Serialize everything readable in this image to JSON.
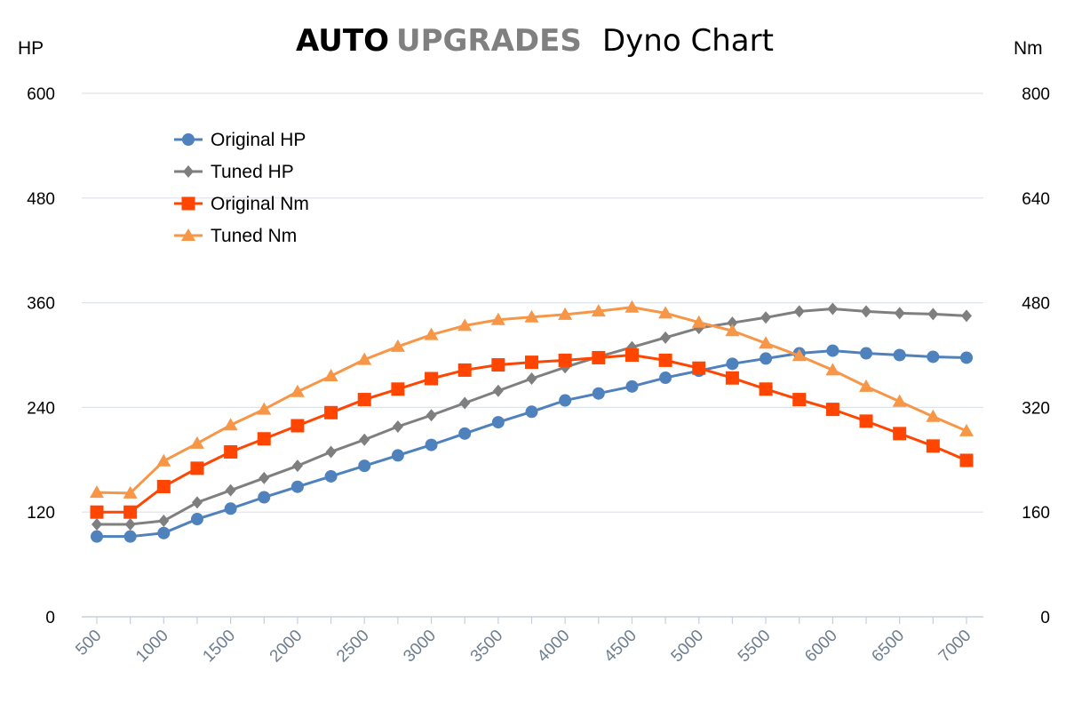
{
  "title": {
    "brand_bold": "AUTO",
    "brand_grey": "UPGRADES",
    "subtitle": "Dyno Chart"
  },
  "colors": {
    "brand_bold": "#000000",
    "brand_grey": "#808080",
    "gridline": "#dde3ea",
    "axis": "#c5d0dc"
  },
  "chart_data": {
    "type": "line",
    "x": [
      500,
      750,
      1000,
      1250,
      1500,
      1750,
      2000,
      2250,
      2500,
      2750,
      3000,
      3250,
      3500,
      3750,
      4000,
      4250,
      4500,
      4750,
      5000,
      5250,
      5500,
      5750,
      6000,
      6250,
      6500,
      6750,
      7000
    ],
    "x_tick_labels": [
      "500",
      "1000",
      "1500",
      "2000",
      "2500",
      "3000",
      "3500",
      "4000",
      "4500",
      "5000",
      "5500",
      "6000",
      "6500",
      "7000"
    ],
    "x_ticks": [
      500,
      1000,
      1500,
      2000,
      2500,
      3000,
      3500,
      4000,
      4500,
      5000,
      5500,
      6000,
      6500,
      7000
    ],
    "xlim": [
      500,
      7000
    ],
    "y_left": {
      "label": "HP",
      "lim": [
        0,
        600
      ],
      "ticks": [
        0,
        120,
        240,
        360,
        480,
        600
      ]
    },
    "y_right": {
      "label": "Nm",
      "lim": [
        0,
        800
      ],
      "ticks": [
        0,
        160,
        320,
        480,
        640,
        800
      ]
    },
    "grid": true,
    "legend_placement": "top-left",
    "series": [
      {
        "name": "Original HP",
        "axis": "left",
        "color": "#4f81bd",
        "marker": "circle",
        "values": [
          92,
          92,
          96,
          112,
          124,
          137,
          149,
          161,
          173,
          185,
          197,
          210,
          223,
          235,
          248,
          256,
          264,
          274,
          282,
          290,
          296,
          302,
          305,
          302,
          300,
          298,
          297
        ]
      },
      {
        "name": "Tuned HP",
        "axis": "left",
        "color": "#7f7f7f",
        "marker": "diamond",
        "values": [
          106,
          106,
          110,
          131,
          145,
          159,
          173,
          189,
          203,
          218,
          231,
          245,
          259,
          273,
          286,
          298,
          309,
          320,
          331,
          337,
          343,
          350,
          353,
          350,
          348,
          347,
          345
        ]
      },
      {
        "name": "Original Nm",
        "axis": "right",
        "color": "#ff4500",
        "marker": "square",
        "values": [
          160,
          160,
          199,
          227,
          252,
          272,
          292,
          312,
          332,
          348,
          364,
          377,
          385,
          389,
          392,
          396,
          400,
          392,
          380,
          365,
          348,
          332,
          317,
          299,
          280,
          261,
          239
        ]
      },
      {
        "name": "Tuned Nm",
        "axis": "right",
        "color": "#f79646",
        "marker": "triangle",
        "values": [
          190,
          189,
          238,
          265,
          293,
          317,
          344,
          368,
          393,
          413,
          431,
          445,
          454,
          458,
          462,
          467,
          473,
          464,
          450,
          437,
          418,
          399,
          377,
          352,
          329,
          306,
          284
        ]
      }
    ]
  }
}
